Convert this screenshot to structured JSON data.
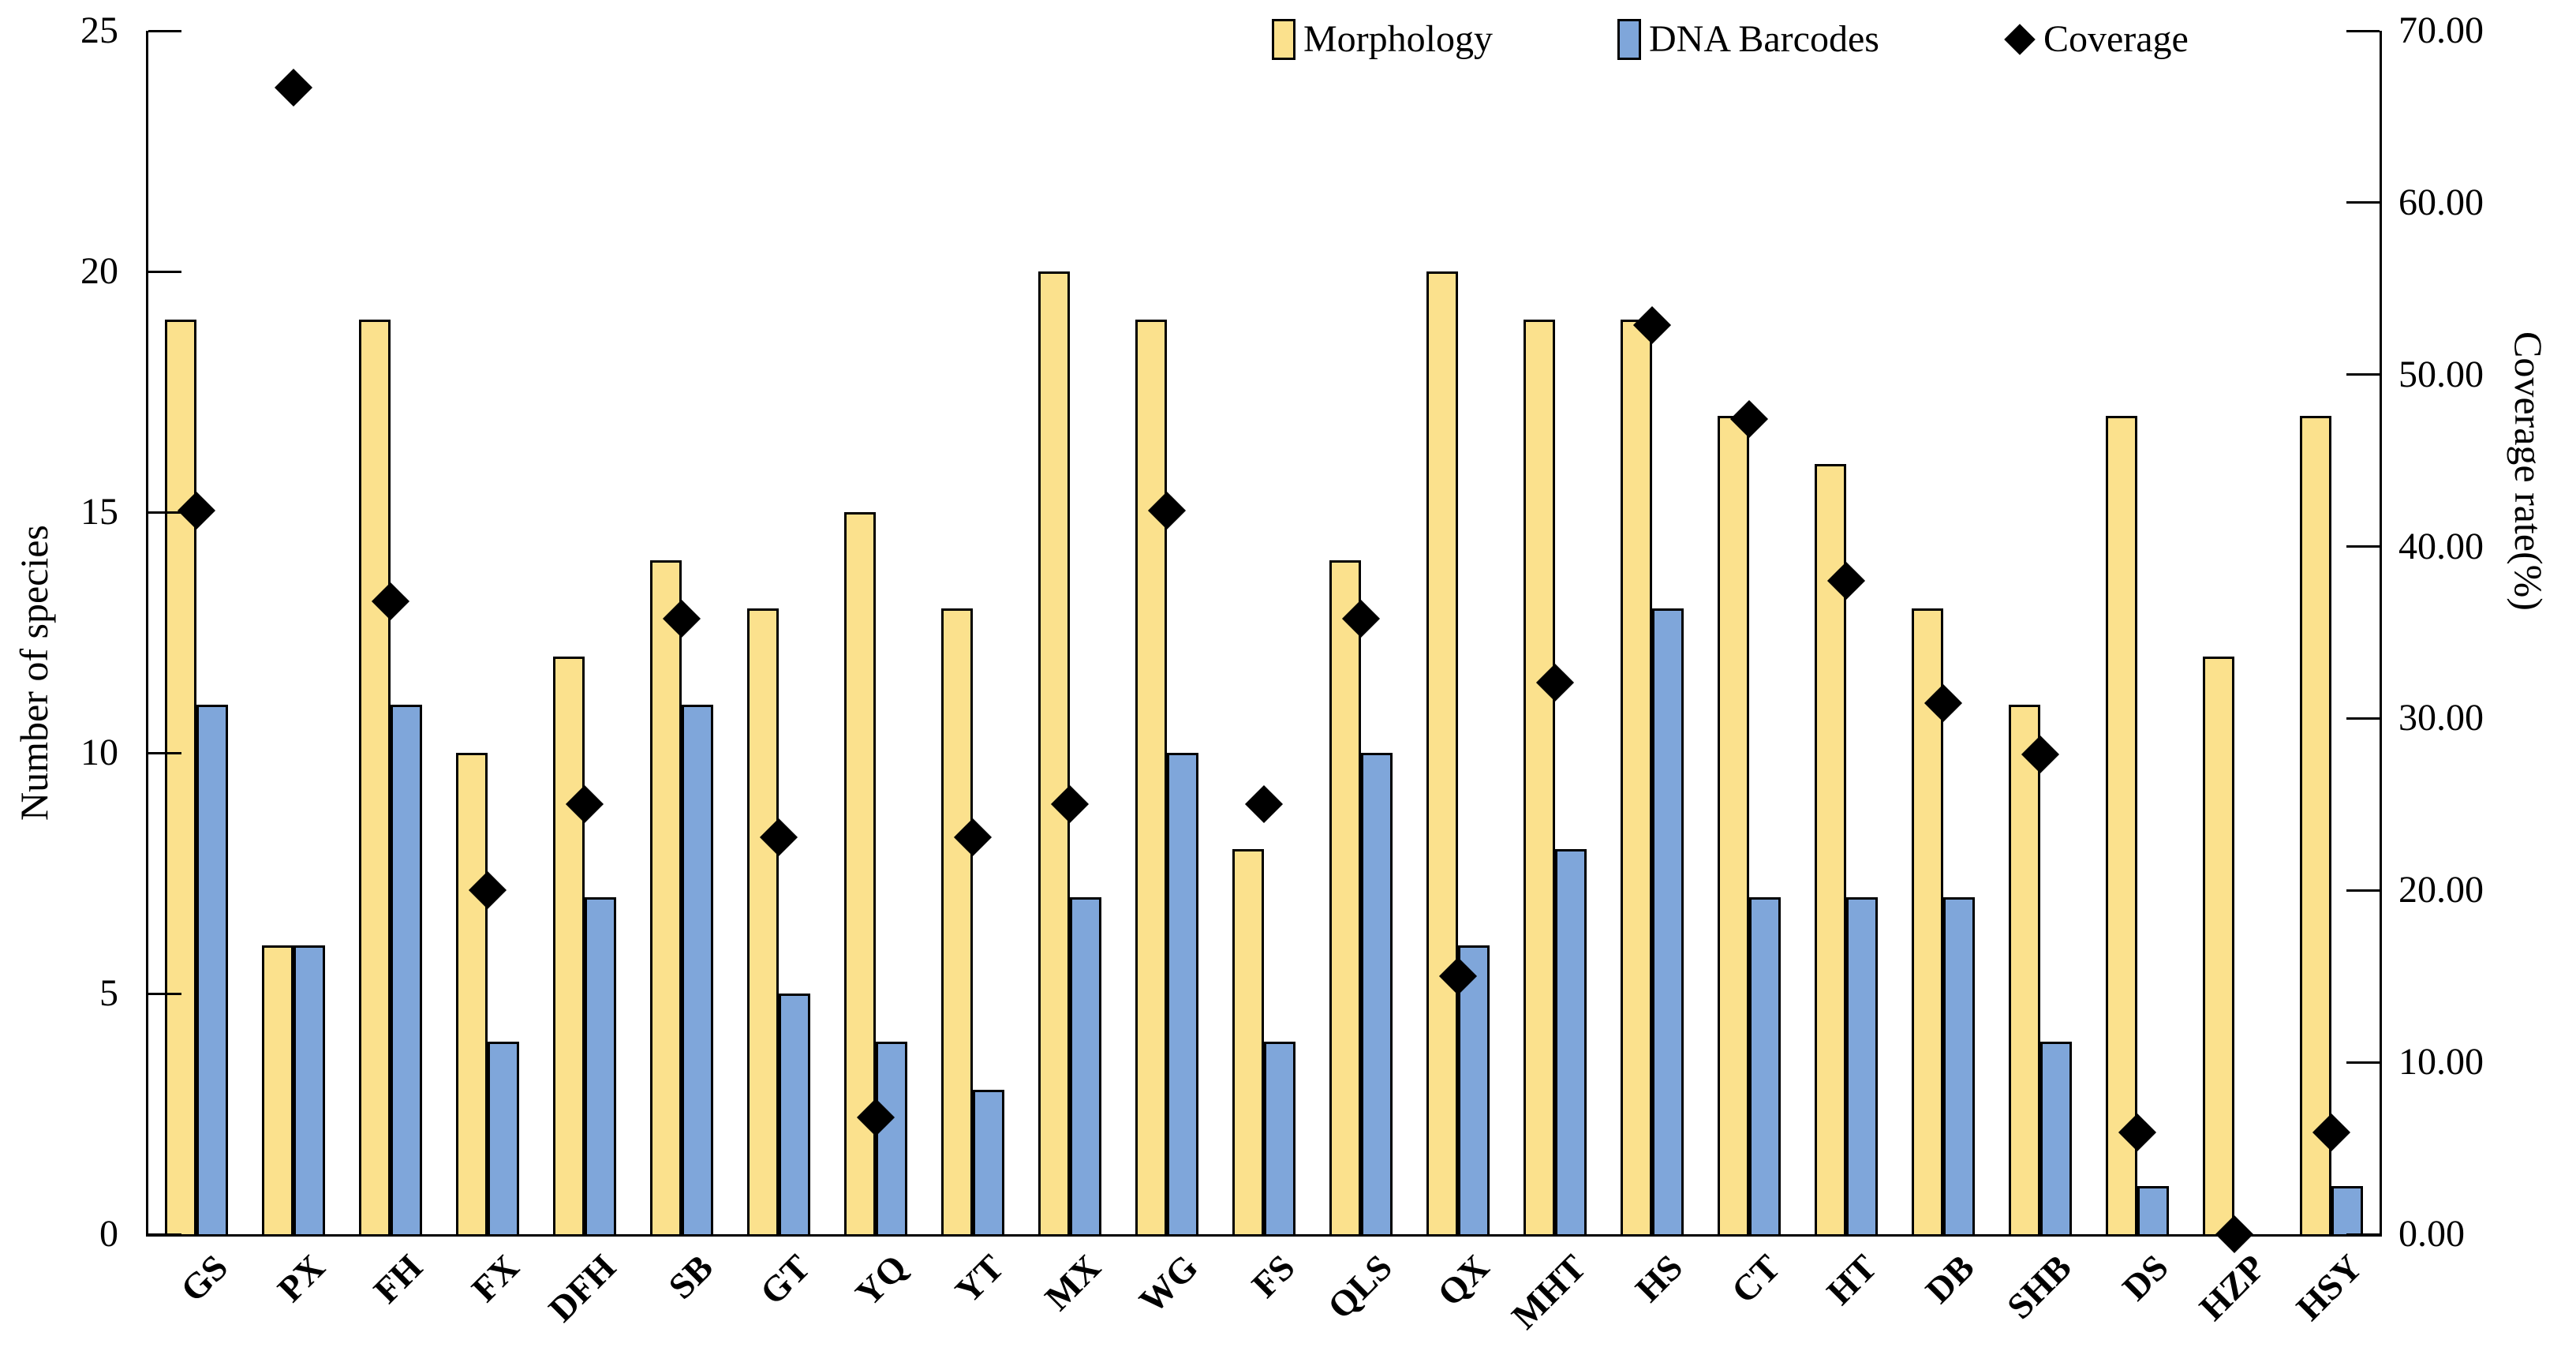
{
  "chart_data": {
    "type": "bar",
    "subtype": "combo-bar-scatter",
    "title": "",
    "categories": [
      "GS",
      "PX",
      "FH",
      "FX",
      "DFH",
      "SB",
      "GT",
      "YQ",
      "YT",
      "MX",
      "WG",
      "FS",
      "QLS",
      "QX",
      "MHT",
      "HS",
      "CT",
      "HT",
      "DB",
      "SHB",
      "DS",
      "HZP",
      "HSY"
    ],
    "series": [
      {
        "name": "Morphology",
        "type": "bar",
        "axis": "left",
        "color": "#FBE18D",
        "values": [
          19,
          6,
          19,
          10,
          12,
          14,
          13,
          15,
          13,
          20,
          19,
          8,
          14,
          20,
          19,
          19,
          17,
          16,
          13,
          11,
          17,
          12,
          17
        ]
      },
      {
        "name": "DNA Barcodes",
        "type": "bar",
        "axis": "left",
        "color": "#7FA6DA",
        "values": [
          11,
          6,
          11,
          4,
          7,
          11,
          5,
          4,
          3,
          7,
          10,
          4,
          10,
          6,
          8,
          13,
          7,
          7,
          7,
          4,
          1,
          0,
          1
        ]
      },
      {
        "name": "Coverage",
        "type": "scatter",
        "axis": "right",
        "color": "#000000",
        "marker": "diamond",
        "values": [
          42.1,
          66.7,
          36.8,
          20.0,
          25.0,
          35.8,
          23.1,
          6.8,
          23.1,
          25.0,
          42.1,
          25.0,
          35.8,
          15.0,
          32.1,
          52.9,
          47.4,
          38.0,
          30.9,
          27.9,
          5.9,
          0.0,
          5.9
        ]
      }
    ],
    "left_axis": {
      "title": "Number of species",
      "min": 0,
      "max": 25,
      "tick_step": 5,
      "tick_labels": [
        "0",
        "5",
        "10",
        "15",
        "20",
        "25"
      ]
    },
    "right_axis": {
      "title": "Coverage rate(%)",
      "min": 0,
      "max": 70,
      "tick_step": 10,
      "tick_labels": [
        "0.00",
        "10.00",
        "20.00",
        "30.00",
        "40.00",
        "50.00",
        "60.00",
        "70.00"
      ]
    },
    "legend": {
      "position": "top",
      "items": [
        {
          "label": "Morphology",
          "marker": "square",
          "color": "#FBE18D"
        },
        {
          "label": "DNA Barcodes",
          "marker": "square",
          "color": "#7FA6DA"
        },
        {
          "label": "Coverage",
          "marker": "diamond",
          "color": "#000000"
        }
      ]
    },
    "grid": false,
    "background": "#ffffff"
  }
}
